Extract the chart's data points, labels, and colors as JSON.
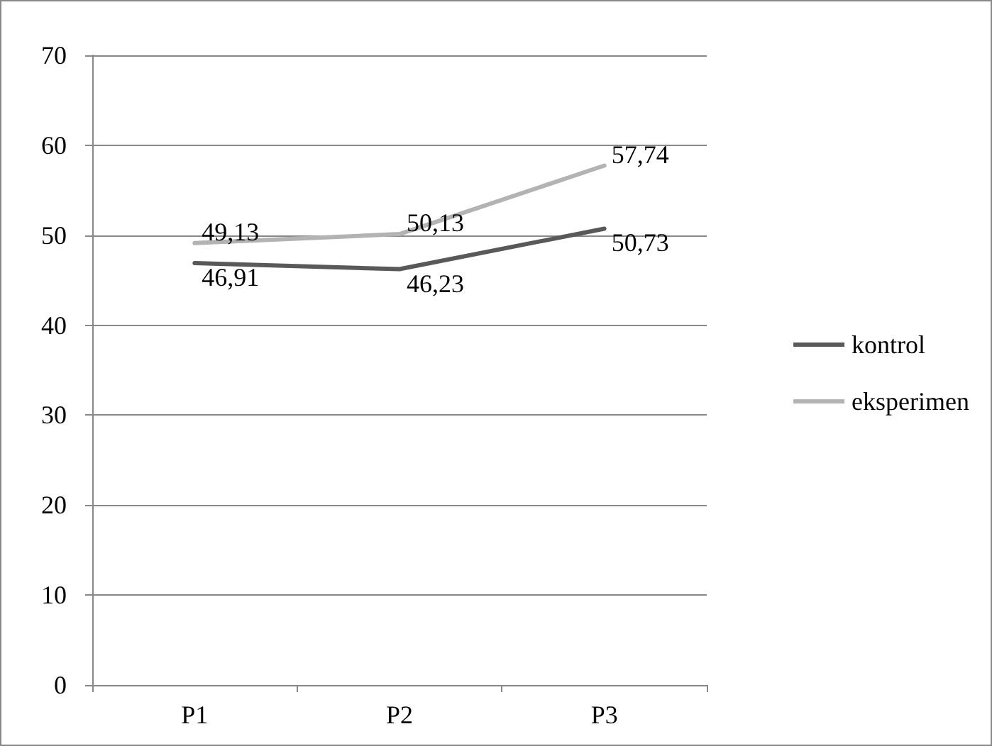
{
  "chart_data": {
    "type": "line",
    "categories": [
      "P1",
      "P2",
      "P3"
    ],
    "series": [
      {
        "name": "kontrol",
        "color": "#595959",
        "values": [
          46.91,
          46.23,
          50.73
        ],
        "value_labels": [
          "46,91",
          "46,23",
          "50,73"
        ]
      },
      {
        "name": "eksperimen",
        "color": "#b3b3b3",
        "values": [
          49.13,
          50.13,
          57.74
        ],
        "value_labels": [
          "49,13",
          "50,13",
          "57,74"
        ]
      }
    ],
    "ylim": [
      0,
      70
    ],
    "yticks": [
      0,
      10,
      20,
      30,
      40,
      50,
      60,
      70
    ],
    "grid": "y",
    "legend": "right",
    "marker": "none",
    "line_style": "solid"
  }
}
